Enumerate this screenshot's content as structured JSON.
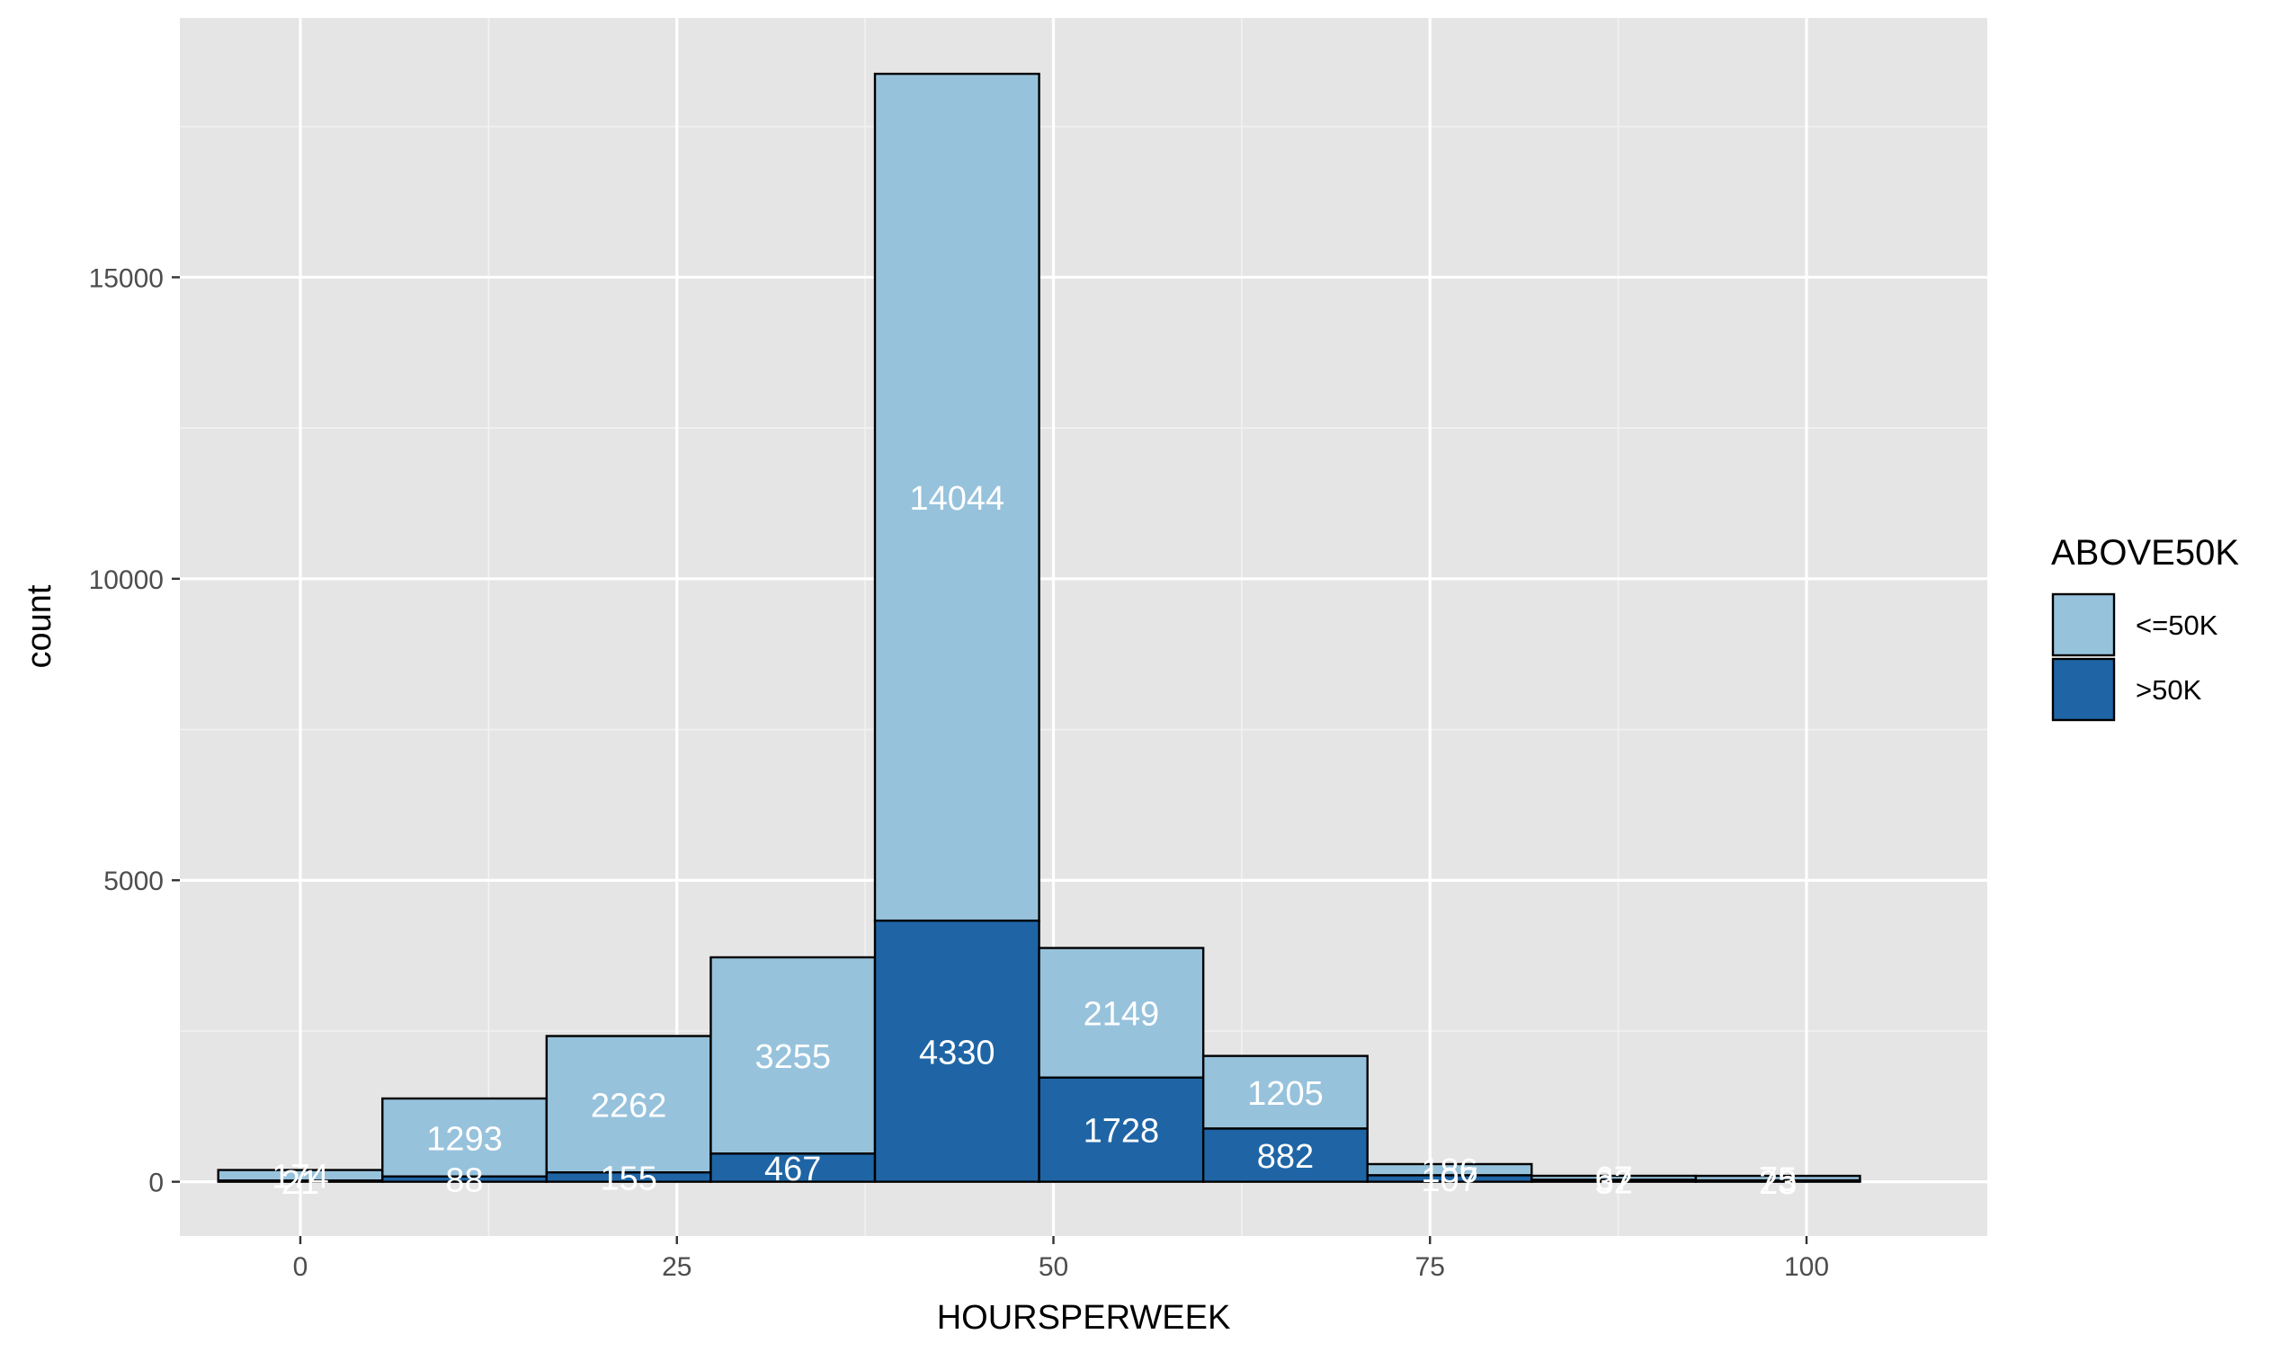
{
  "chart_data": {
    "type": "bar",
    "subtype": "stacked-histogram",
    "xlabel": "HOURSPERWEEK",
    "ylabel": "count",
    "xlim": [
      -8,
      112
    ],
    "ylim": [
      -900,
      19300
    ],
    "xticks": [
      0,
      25,
      50,
      75,
      100
    ],
    "yticks": [
      0,
      5000,
      10000,
      15000
    ],
    "grid": true,
    "legend": {
      "title": "ABOVE50K",
      "position": "right"
    },
    "bin_width": 10.9,
    "bins": [
      {
        "x_start": -5.45,
        "x_end": 5.45
      },
      {
        "x_start": 5.45,
        "x_end": 16.35
      },
      {
        "x_start": 16.35,
        "x_end": 27.25
      },
      {
        "x_start": 27.25,
        "x_end": 38.15
      },
      {
        "x_start": 38.15,
        "x_end": 49.05
      },
      {
        "x_start": 49.05,
        "x_end": 59.95
      },
      {
        "x_start": 59.95,
        "x_end": 70.85
      },
      {
        "x_start": 70.85,
        "x_end": 81.75
      },
      {
        "x_start": 81.75,
        "x_end": 92.65
      },
      {
        "x_start": 92.65,
        "x_end": 103.55
      }
    ],
    "series": [
      {
        "name": "<=50K",
        "color": "#97c2dc",
        "values": [
          174,
          1293,
          2262,
          3255,
          14044,
          2149,
          1205,
          186,
          67,
          75
        ],
        "labels": [
          "174",
          "1293",
          "2262",
          "3255",
          "14044",
          "2149",
          "1205",
          "186",
          "67",
          "75"
        ]
      },
      {
        "name": ">50K",
        "color": "#1f65a6",
        "values": [
          21,
          88,
          155,
          467,
          4330,
          1728,
          882,
          107,
          32,
          23
        ],
        "labels": [
          "21",
          "88",
          "155",
          "467",
          "4330",
          "1728",
          "882",
          "107",
          "32",
          "23"
        ]
      }
    ],
    "colors": {
      "panel_background": "#e5e5e5",
      "grid_major": "#ffffff",
      "grid_minor": "#f2f2f2",
      "bar_outline": "#000000",
      "data_label": "#ffffff",
      "tick_label": "#4d4d4d",
      "axis_title": "#000000"
    }
  }
}
